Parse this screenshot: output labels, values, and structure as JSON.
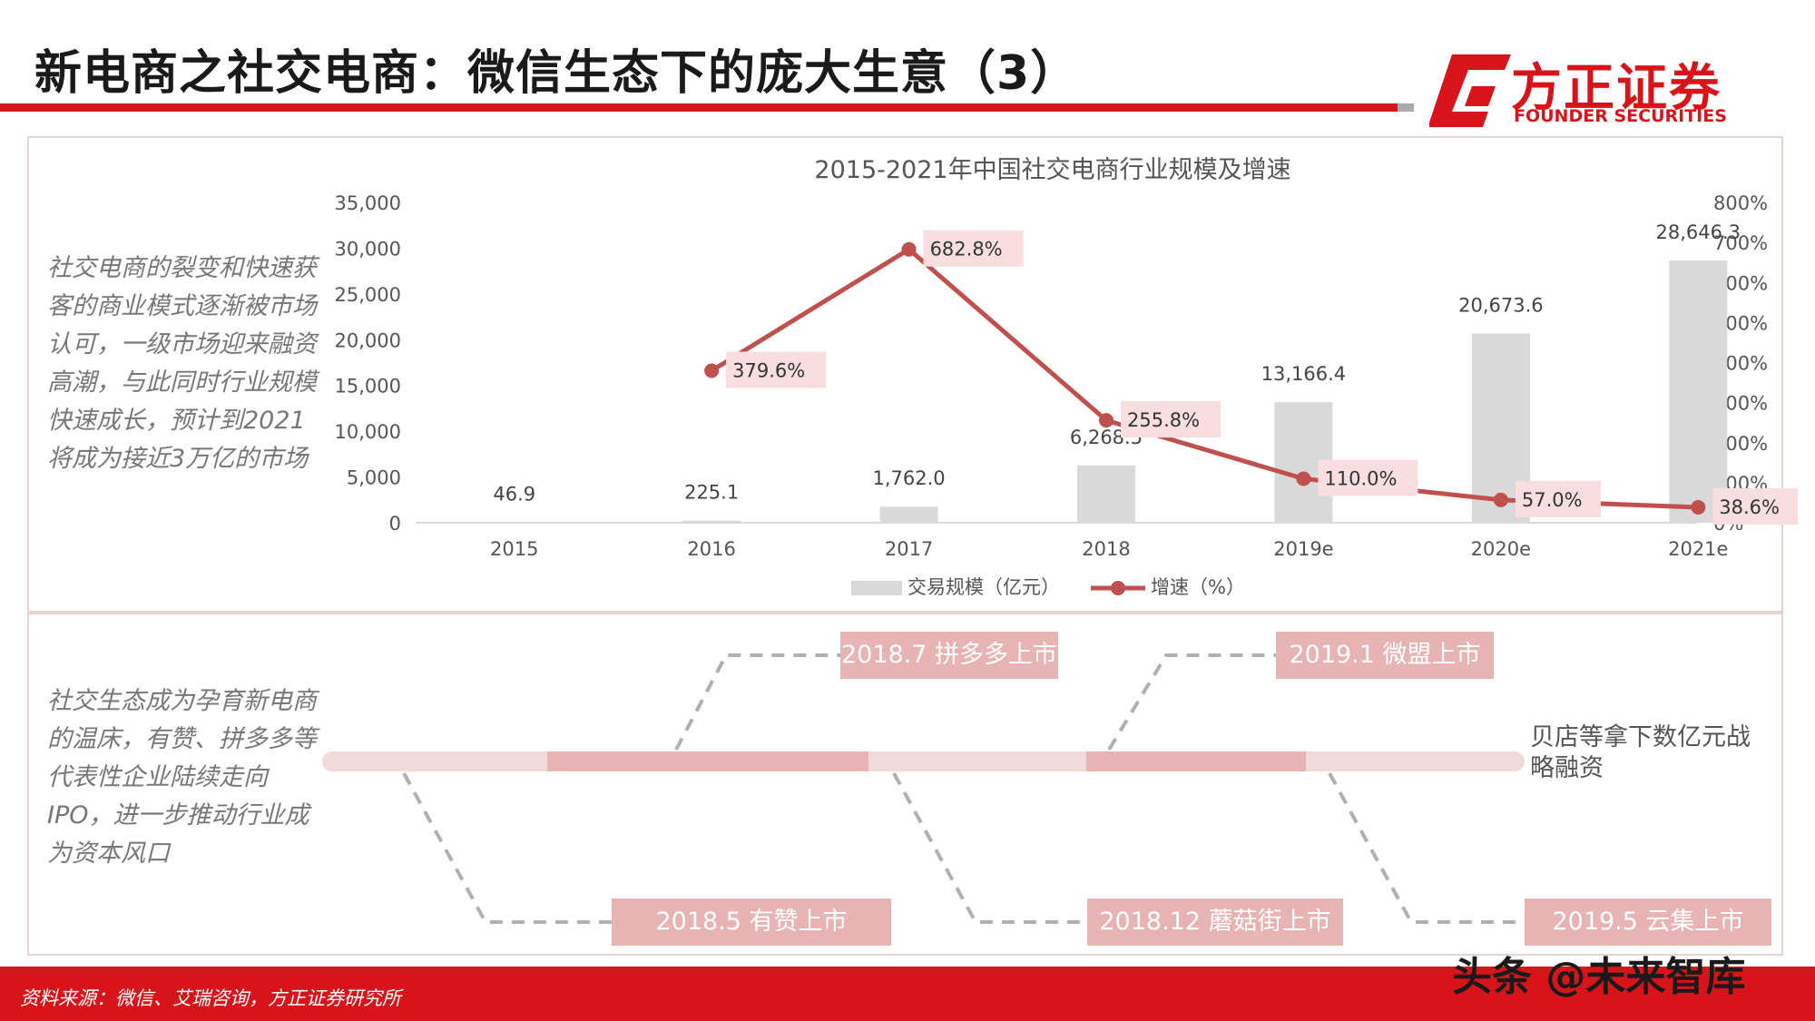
{
  "header": {
    "title": "新电商之社交电商：微信生态下的庞大生意（3）",
    "logo_cn": "方正证券",
    "logo_en": "FOUNDER SECURITIES"
  },
  "notes": {
    "note1": "社交电商的裂变和快速获客的商业模式逐渐被市场认可，一级市场迎来融资高潮，与此同时行业规模快速成长，预计到2021将成为接近3万亿的市场",
    "note2": "社交生态成为孕育新电商的温床，有赞、拼多多等代表性企业陆续走向IPO，进一步推动行业成为资本风口"
  },
  "chart_data": {
    "type": "bar+line",
    "title": "2015-2021年中国社交电商行业规模及增速",
    "categories": [
      "2015",
      "2016",
      "2017",
      "2018",
      "2019e",
      "2020e",
      "2021e"
    ],
    "series": [
      {
        "name": "交易规模（亿元）",
        "kind": "bar",
        "axis": "left",
        "color": "#d9d9d9",
        "values": [
          46.9,
          225.1,
          1762.0,
          6268.5,
          13166.4,
          20673.6,
          28646.3
        ],
        "labels": [
          "46.9",
          "225.1",
          "1,762.0",
          "6,268.5",
          "13,166.4",
          "20,673.6",
          "28,646.3"
        ]
      },
      {
        "name": "增速（%）",
        "kind": "line",
        "axis": "right",
        "color": "#c0504d",
        "values": [
          null,
          379.6,
          682.8,
          255.8,
          110.0,
          57.0,
          38.6
        ],
        "labels": [
          null,
          "379.6%",
          "682.8%",
          "255.8%",
          "110.0%",
          "57.0%",
          "38.6%"
        ]
      }
    ],
    "y_left": {
      "min": 0,
      "max": 35000,
      "ticks": [
        "0",
        "5,000",
        "10,000",
        "15,000",
        "20,000",
        "25,000",
        "30,000",
        "35,000"
      ]
    },
    "y_right": {
      "min": 0,
      "max": 800,
      "ticks": [
        "0%",
        "100%",
        "200%",
        "300%",
        "400%",
        "500%",
        "600%",
        "700%",
        "800%"
      ]
    },
    "legend": "bottom",
    "grid": false
  },
  "timeline": {
    "events_top": [
      {
        "label": "2018.7 拼多多上市"
      },
      {
        "label": "2019.1 微盟上市"
      }
    ],
    "events_bottom": [
      {
        "label": "2018.5 有赞上市"
      },
      {
        "label": "2018.12 蘑菇街上市"
      },
      {
        "label": "2019.5 云集上市"
      }
    ],
    "end_note": "贝店等拿下数亿元战略融资"
  },
  "footer": {
    "source": "资料来源：微信、艾瑞咨询，方正证券研究所",
    "watermark": "头条 @未来智库"
  },
  "colors": {
    "brand_red": "#d7141a",
    "bar_grey": "#d9d9d9",
    "line_red": "#c0504d",
    "label_bg": "#f8dede",
    "event_pink": "#e8b3b3"
  }
}
